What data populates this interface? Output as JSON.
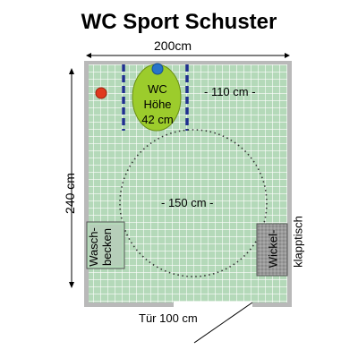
{
  "title": "WC Sport Schuster",
  "dimensions": {
    "width_label": "200cm",
    "height_label": "240 cm",
    "clearance_label": "- 110 cm -",
    "turning_circle_label": "- 150 cm -",
    "door_label": "Tür 100 cm"
  },
  "toilet": {
    "line1": "WC",
    "line2": "Höhe",
    "line3": "42 cm"
  },
  "sink": {
    "line1": "Wasch-",
    "line2": "becken"
  },
  "changing_table": {
    "label": "Wickel-",
    "label2": "klapptisch"
  },
  "colors": {
    "floor": "#b4d9b9",
    "grid": "#ffffff",
    "wall": "#b9b9b9",
    "toilet": "#9ccc2c",
    "grab_bar": "#1f2f8f",
    "flush_button": "#2874c8",
    "alarm_button": "#e03a1e",
    "changing_table": "#9a9a9a"
  },
  "icons": {
    "alarm": "red-dot",
    "flush": "blue-dot"
  }
}
